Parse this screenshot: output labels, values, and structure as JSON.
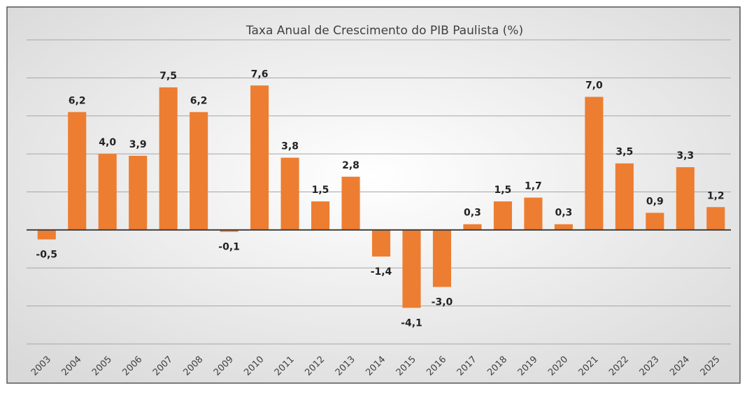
{
  "chart_data": {
    "type": "bar",
    "title": "Taxa Anual de Crescimento do PIB Paulista (%)",
    "categories": [
      "2003",
      "2004",
      "2005",
      "2006",
      "2007",
      "2008",
      "2009",
      "2010",
      "2011",
      "2012",
      "2013",
      "2014",
      "2015",
      "2016",
      "2017",
      "2018",
      "2019",
      "2020",
      "2021",
      "2022",
      "2023",
      "2024",
      "2025"
    ],
    "values": [
      -0.5,
      6.2,
      4.0,
      3.9,
      7.5,
      6.2,
      -0.1,
      7.6,
      3.8,
      1.5,
      2.8,
      -1.4,
      -4.1,
      -3.0,
      0.3,
      1.5,
      1.7,
      0.3,
      7.0,
      3.5,
      0.9,
      3.3,
      1.2
    ],
    "value_labels": [
      "-0,5",
      "6,2",
      "4,0",
      "3,9",
      "7,5",
      "6,2",
      "-0,1",
      "7,6",
      "3,8",
      "1,5",
      "2,8",
      "-1,4",
      "-4,1",
      "-3,0",
      "0,3",
      "1,5",
      "1,7",
      "0,3",
      "7,0",
      "3,5",
      "0,9",
      "3,3",
      "1,2"
    ],
    "color": "#ed7d31",
    "ylim": [
      -6,
      10
    ],
    "yticks": [
      -6,
      -4,
      -2,
      0,
      2,
      4,
      6,
      8,
      10
    ],
    "grid": true
  }
}
